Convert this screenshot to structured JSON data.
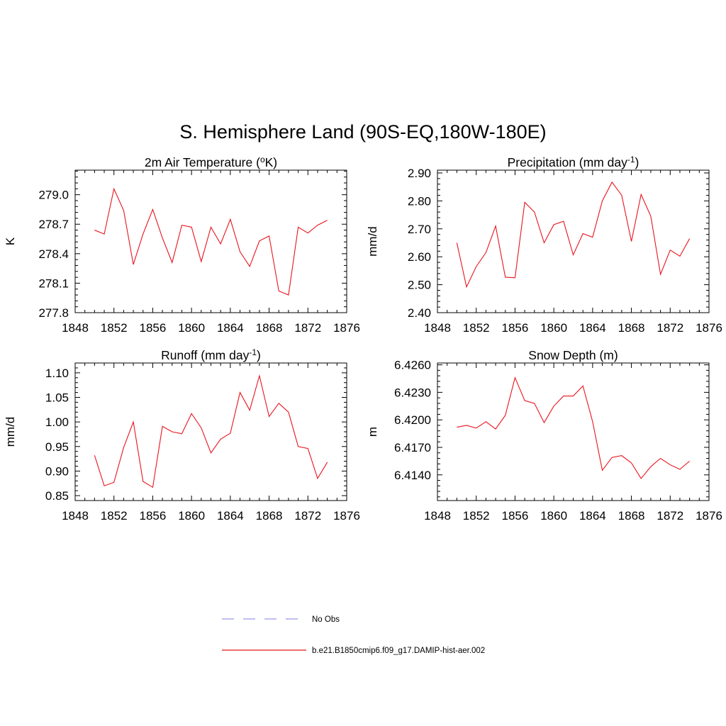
{
  "figure": {
    "title": "S. Hemisphere Land (90S-EQ,180W-180E)"
  },
  "colors": {
    "model_line": "#e8141e",
    "obs_line": "#9999ee",
    "axis": "#000000"
  },
  "legend": {
    "placement": "bottom",
    "entries": [
      {
        "label": "No Obs",
        "style": "dashed",
        "color": "#9999ee"
      },
      {
        "label": "b.e21.B1850cmip6.f09_g17.DAMIP-hist-aer.002",
        "style": "solid",
        "color": "#e8141e"
      }
    ]
  },
  "chart_data": [
    {
      "type": "line",
      "title": "2m Air Temperature (",
      "title_sup": "o",
      "title_end": "K)",
      "ylabel": "K",
      "xlabel": "",
      "xlim": [
        1848,
        1876
      ],
      "ylim": [
        277.8,
        279.25
      ],
      "xticks": [
        1848,
        1852,
        1856,
        1860,
        1864,
        1868,
        1872,
        1876
      ],
      "yticks": [
        277.8,
        278.1,
        278.4,
        278.7,
        279.0
      ],
      "ytick_labels": [
        "277.8",
        "278.1",
        "278.4",
        "278.7",
        "279.0"
      ],
      "series": [
        {
          "x": [
            1850,
            1851,
            1852,
            1853,
            1854,
            1855,
            1856,
            1857,
            1858,
            1859,
            1860,
            1861,
            1862,
            1863,
            1864,
            1865,
            1866,
            1867,
            1868,
            1869,
            1870,
            1871,
            1872,
            1873,
            1874
          ],
          "y": [
            278.64,
            278.6,
            279.06,
            278.84,
            278.29,
            278.6,
            278.85,
            278.56,
            278.31,
            278.69,
            278.67,
            278.32,
            278.67,
            278.5,
            278.75,
            278.42,
            278.27,
            278.53,
            278.58,
            278.02,
            277.98,
            278.67,
            278.61,
            278.69,
            278.74
          ]
        }
      ]
    },
    {
      "type": "line",
      "title": "Precipitation (mm day",
      "title_sup": "-1",
      "title_end": ")",
      "ylabel": "mm/d",
      "xlabel": "",
      "xlim": [
        1848,
        1876
      ],
      "ylim": [
        2.4,
        2.91
      ],
      "xticks": [
        1848,
        1852,
        1856,
        1860,
        1864,
        1868,
        1872,
        1876
      ],
      "yticks": [
        2.4,
        2.5,
        2.6,
        2.7,
        2.8,
        2.9
      ],
      "ytick_labels": [
        "2.40",
        "2.50",
        "2.60",
        "2.70",
        "2.80",
        "2.90"
      ],
      "series": [
        {
          "x": [
            1850,
            1851,
            1852,
            1853,
            1854,
            1855,
            1856,
            1857,
            1858,
            1859,
            1860,
            1861,
            1862,
            1863,
            1864,
            1865,
            1866,
            1867,
            1868,
            1869,
            1870,
            1871,
            1872,
            1873,
            1874
          ],
          "y": [
            2.65,
            2.492,
            2.565,
            2.615,
            2.71,
            2.527,
            2.525,
            2.795,
            2.76,
            2.65,
            2.715,
            2.727,
            2.607,
            2.683,
            2.67,
            2.8,
            2.867,
            2.82,
            2.655,
            2.823,
            2.745,
            2.537,
            2.624,
            2.602,
            2.665
          ]
        }
      ]
    },
    {
      "type": "line",
      "title": "Runoff (mm day",
      "title_sup": "-1",
      "title_end": ")",
      "ylabel": "mm/d",
      "xlabel": "",
      "xlim": [
        1848,
        1876
      ],
      "ylim": [
        0.84,
        1.12
      ],
      "xticks": [
        1848,
        1852,
        1856,
        1860,
        1864,
        1868,
        1872,
        1876
      ],
      "yticks": [
        0.85,
        0.9,
        0.95,
        1.0,
        1.05,
        1.1
      ],
      "ytick_labels": [
        "0.85",
        "0.90",
        "0.95",
        "1.00",
        "1.05",
        "1.10"
      ],
      "series": [
        {
          "x": [
            1850,
            1851,
            1852,
            1853,
            1854,
            1855,
            1856,
            1857,
            1858,
            1859,
            1860,
            1861,
            1862,
            1863,
            1864,
            1865,
            1866,
            1867,
            1868,
            1869,
            1870,
            1871,
            1872,
            1873,
            1874
          ],
          "y": [
            0.932,
            0.87,
            0.877,
            0.948,
            1.0,
            0.879,
            0.867,
            0.991,
            0.98,
            0.976,
            1.017,
            0.988,
            0.937,
            0.965,
            0.977,
            1.06,
            1.024,
            1.094,
            1.011,
            1.038,
            1.02,
            0.95,
            0.946,
            0.885,
            0.918
          ]
        }
      ]
    },
    {
      "type": "line",
      "title": "Snow Depth (m)",
      "title_sup": "",
      "title_end": "",
      "ylabel": "m",
      "xlabel": "",
      "xlim": [
        1848,
        1876
      ],
      "ylim": [
        6.4112,
        6.4262
      ],
      "xticks": [
        1848,
        1852,
        1856,
        1860,
        1864,
        1868,
        1872,
        1876
      ],
      "yticks": [
        6.414,
        6.417,
        6.42,
        6.423,
        6.426
      ],
      "ytick_labels": [
        "6.4140",
        "6.4170",
        "6.4200",
        "6.4230",
        "6.4260"
      ],
      "series": [
        {
          "x": [
            1850,
            1851,
            1852,
            1853,
            1854,
            1855,
            1856,
            1857,
            1858,
            1859,
            1860,
            1861,
            1862,
            1863,
            1864,
            1865,
            1866,
            1867,
            1868,
            1869,
            1870,
            1871,
            1872,
            1873,
            1874
          ],
          "y": [
            6.4192,
            6.4194,
            6.4191,
            6.4198,
            6.419,
            6.4205,
            6.4246,
            6.4221,
            6.4218,
            6.4197,
            6.4215,
            6.4226,
            6.4226,
            6.4237,
            6.4198,
            6.4145,
            6.4159,
            6.4161,
            6.4153,
            6.4136,
            6.4149,
            6.4158,
            6.4151,
            6.4146,
            6.4155
          ]
        }
      ]
    }
  ]
}
